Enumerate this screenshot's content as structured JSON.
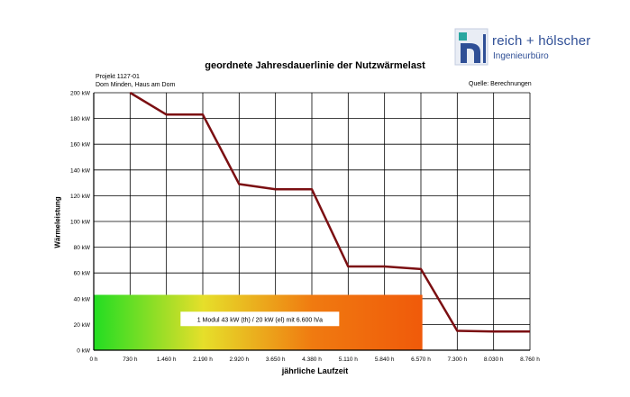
{
  "logo": {
    "brand": "reich + hölscher",
    "subtitle": "Ingenieurbüro",
    "colors": {
      "blue": "#2f4f96",
      "teal": "#2aa7a0"
    }
  },
  "header": {
    "title": "geordnete Jahresdauerlinie der Nutzwärmelast",
    "project": "Projekt 1127-01",
    "location": "Dom Minden, Haus am Dom",
    "source": "Quelle: Berechnungen"
  },
  "chart_data": {
    "type": "line",
    "title": "geordnete Jahresdauerlinie der Nutzwärmelast",
    "xlabel": "jährliche Laufzeit",
    "ylabel": "Wärmeleistung",
    "xlim": [
      0,
      8760
    ],
    "ylim": [
      0,
      200
    ],
    "x_ticks": [
      0,
      730,
      1460,
      2190,
      2920,
      3650,
      4380,
      5110,
      5840,
      6570,
      7300,
      8030,
      8760
    ],
    "x_tick_labels": [
      "0 h",
      "730 h",
      "1.460 h",
      "2.190 h",
      "2.920 h",
      "3.650 h",
      "4.380 h",
      "5.110 h",
      "5.840 h",
      "6.570 h",
      "7.300 h",
      "8.030 h",
      "8.760 h"
    ],
    "y_ticks": [
      0,
      20,
      40,
      60,
      80,
      100,
      120,
      140,
      160,
      180,
      200
    ],
    "y_tick_labels": [
      "0 kW",
      "20 kW",
      "40 kW",
      "60 kW",
      "80 kW",
      "100 kW",
      "120 kW",
      "140 kW",
      "160 kW",
      "180 kW",
      "200 kW"
    ],
    "grid": true,
    "series": [
      {
        "color": "#7b0f12",
        "x": [
          730,
          1460,
          2190,
          2920,
          3650,
          4380,
          5110,
          5840,
          6570,
          7300,
          8030,
          8760
        ],
        "y": [
          200,
          183,
          183,
          129,
          125,
          125,
          65,
          65,
          63,
          15,
          14.5,
          14.5
        ]
      }
    ],
    "annotation": {
      "text": "1 Modul 43 kW (th) /  20 kW (el) mit 6.600 h/a",
      "x_start": 0,
      "x_end": 6600,
      "y_start": 0,
      "y_end": 43,
      "colors": [
        "#22dd22",
        "#e6df2a",
        "#f07a10",
        "#f05a0a"
      ]
    }
  }
}
